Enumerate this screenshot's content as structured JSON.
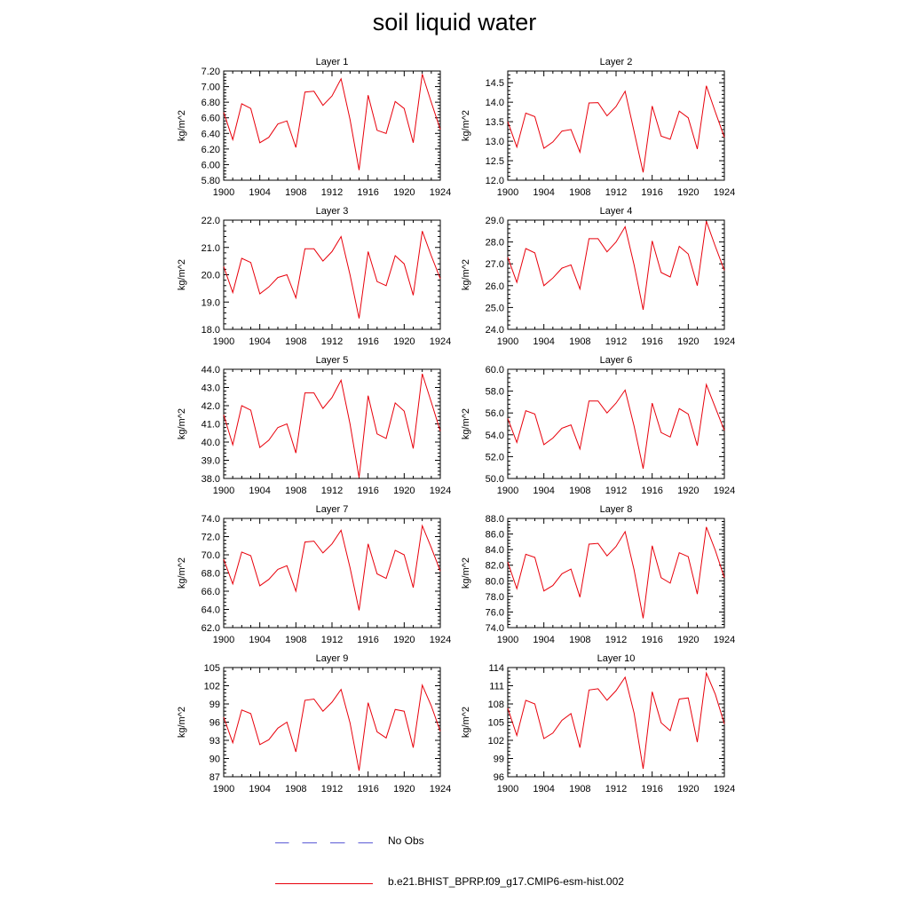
{
  "figure": {
    "title": "soil liquid water"
  },
  "colors": {
    "series": "#e8000b",
    "obs": "#5b5bd6",
    "axis": "#000000"
  },
  "legend": {
    "entries": [
      {
        "label": "No Obs",
        "style": "dashed",
        "color": "#5b5bd6"
      },
      {
        "label": "b.e21.BHIST_BPRP.f09_g17.CMIP6-esm-hist.002",
        "style": "solid",
        "color": "#e8000b"
      }
    ]
  },
  "chart_data": [
    {
      "type": "line",
      "title": "Layer 1",
      "ylabel": "kg/m^2",
      "xlim": [
        1900,
        1924
      ],
      "ylim": [
        5.8,
        7.2
      ],
      "yticks": [
        "5.80",
        "6.00",
        "6.20",
        "6.40",
        "6.60",
        "6.80",
        "7.00",
        "7.20"
      ],
      "xticks": [
        "1900",
        "1904",
        "1908",
        "1912",
        "1916",
        "1920",
        "1924"
      ],
      "x": [
        1900,
        1901,
        1902,
        1903,
        1904,
        1905,
        1906,
        1907,
        1908,
        1909,
        1910,
        1911,
        1912,
        1913,
        1914,
        1915,
        1916,
        1917,
        1918,
        1919,
        1920,
        1921,
        1922,
        1923,
        1924
      ],
      "values": [
        6.67,
        6.32,
        6.78,
        6.72,
        6.28,
        6.35,
        6.52,
        6.56,
        6.22,
        6.93,
        6.94,
        6.76,
        6.88,
        7.1,
        6.58,
        5.93,
        6.89,
        6.44,
        6.4,
        6.81,
        6.72,
        6.28,
        7.16,
        6.8,
        6.45
      ]
    },
    {
      "type": "line",
      "title": "Layer 2",
      "ylabel": "kg/m^2",
      "xlim": [
        1900,
        1924
      ],
      "ylim": [
        12.0,
        14.8
      ],
      "yticks": [
        "12.0",
        "12.5",
        "13.0",
        "13.5",
        "14.0",
        "14.5"
      ],
      "xticks": [
        "1900",
        "1904",
        "1908",
        "1912",
        "1916",
        "1920",
        "1924"
      ],
      "x": [
        1900,
        1901,
        1902,
        1903,
        1904,
        1905,
        1906,
        1907,
        1908,
        1909,
        1910,
        1911,
        1912,
        1913,
        1914,
        1915,
        1916,
        1917,
        1918,
        1919,
        1920,
        1921,
        1922,
        1923,
        1924
      ],
      "values": [
        13.5,
        12.85,
        13.72,
        13.63,
        12.82,
        12.98,
        13.26,
        13.3,
        12.72,
        13.98,
        13.99,
        13.65,
        13.89,
        14.28,
        13.25,
        12.2,
        13.9,
        13.13,
        13.05,
        13.77,
        13.6,
        12.8,
        14.42,
        13.75,
        13.1
      ]
    },
    {
      "type": "line",
      "title": "Layer 3",
      "ylabel": "kg/m^2",
      "xlim": [
        1900,
        1924
      ],
      "ylim": [
        18.0,
        22.0
      ],
      "yticks": [
        "18.0",
        "19.0",
        "20.0",
        "21.0",
        "22.0"
      ],
      "xticks": [
        "1900",
        "1904",
        "1908",
        "1912",
        "1916",
        "1920",
        "1924"
      ],
      "x": [
        1900,
        1901,
        1902,
        1903,
        1904,
        1905,
        1906,
        1907,
        1908,
        1909,
        1910,
        1911,
        1912,
        1913,
        1914,
        1915,
        1916,
        1917,
        1918,
        1919,
        1920,
        1921,
        1922,
        1923,
        1924
      ],
      "values": [
        20.3,
        19.35,
        20.6,
        20.45,
        19.3,
        19.55,
        19.9,
        20.0,
        19.15,
        20.95,
        20.95,
        20.5,
        20.85,
        21.4,
        20.0,
        18.4,
        20.85,
        19.75,
        19.6,
        20.7,
        20.4,
        19.25,
        21.6,
        20.7,
        19.85
      ]
    },
    {
      "type": "line",
      "title": "Layer 4",
      "ylabel": "kg/m^2",
      "xlim": [
        1900,
        1924
      ],
      "ylim": [
        24.0,
        29.0
      ],
      "yticks": [
        "24.0",
        "25.0",
        "26.0",
        "27.0",
        "28.0",
        "29.0"
      ],
      "xticks": [
        "1900",
        "1904",
        "1908",
        "1912",
        "1916",
        "1920",
        "1924"
      ],
      "x": [
        1900,
        1901,
        1902,
        1903,
        1904,
        1905,
        1906,
        1907,
        1908,
        1909,
        1910,
        1911,
        1912,
        1913,
        1914,
        1915,
        1916,
        1917,
        1918,
        1919,
        1920,
        1921,
        1922,
        1923,
        1924
      ],
      "values": [
        27.3,
        26.15,
        27.7,
        27.5,
        26.0,
        26.35,
        26.8,
        26.95,
        25.85,
        28.15,
        28.15,
        27.55,
        28.0,
        28.7,
        26.95,
        24.9,
        28.05,
        26.6,
        26.4,
        27.8,
        27.45,
        26.0,
        28.95,
        27.8,
        26.7
      ]
    },
    {
      "type": "line",
      "title": "Layer 5",
      "ylabel": "kg/m^2",
      "xlim": [
        1900,
        1924
      ],
      "ylim": [
        38.0,
        44.0
      ],
      "yticks": [
        "38.0",
        "39.0",
        "40.0",
        "41.0",
        "42.0",
        "43.0",
        "44.0"
      ],
      "xticks": [
        "1900",
        "1904",
        "1908",
        "1912",
        "1916",
        "1920",
        "1924"
      ],
      "x": [
        1900,
        1901,
        1902,
        1903,
        1904,
        1905,
        1906,
        1907,
        1908,
        1909,
        1910,
        1911,
        1912,
        1913,
        1914,
        1915,
        1916,
        1917,
        1918,
        1919,
        1920,
        1921,
        1922,
        1923,
        1924
      ],
      "values": [
        41.5,
        39.85,
        42.0,
        41.75,
        39.7,
        40.1,
        40.8,
        41.0,
        39.4,
        42.7,
        42.7,
        41.85,
        42.45,
        43.4,
        41.0,
        38.05,
        42.55,
        40.45,
        40.2,
        42.15,
        41.7,
        39.65,
        43.75,
        42.2,
        40.6
      ]
    },
    {
      "type": "line",
      "title": "Layer 6",
      "ylabel": "kg/m^2",
      "xlim": [
        1900,
        1924
      ],
      "ylim": [
        50.0,
        60.0
      ],
      "yticks": [
        "50.0",
        "52.0",
        "54.0",
        "56.0",
        "58.0",
        "60.0"
      ],
      "xticks": [
        "1900",
        "1904",
        "1908",
        "1912",
        "1916",
        "1920",
        "1924"
      ],
      "x": [
        1900,
        1901,
        1902,
        1903,
        1904,
        1905,
        1906,
        1907,
        1908,
        1909,
        1910,
        1911,
        1912,
        1913,
        1914,
        1915,
        1916,
        1917,
        1918,
        1919,
        1920,
        1921,
        1922,
        1923,
        1924
      ],
      "values": [
        55.5,
        53.3,
        56.2,
        55.9,
        53.1,
        53.7,
        54.6,
        54.9,
        52.7,
        57.1,
        57.1,
        56.0,
        56.9,
        58.1,
        54.8,
        50.9,
        56.9,
        54.2,
        53.8,
        56.4,
        55.9,
        53.0,
        58.6,
        56.5,
        54.4
      ]
    },
    {
      "type": "line",
      "title": "Layer 7",
      "ylabel": "kg/m^2",
      "xlim": [
        1900,
        1924
      ],
      "ylim": [
        62.0,
        74.0
      ],
      "yticks": [
        "62.0",
        "64.0",
        "66.0",
        "68.0",
        "70.0",
        "72.0",
        "74.0"
      ],
      "xticks": [
        "1900",
        "1904",
        "1908",
        "1912",
        "1916",
        "1920",
        "1924"
      ],
      "x": [
        1900,
        1901,
        1902,
        1903,
        1904,
        1905,
        1906,
        1907,
        1908,
        1909,
        1910,
        1911,
        1912,
        1913,
        1914,
        1915,
        1916,
        1917,
        1918,
        1919,
        1920,
        1921,
        1922,
        1923,
        1924
      ],
      "values": [
        69.5,
        66.8,
        70.3,
        69.9,
        66.6,
        67.3,
        68.4,
        68.8,
        66.0,
        71.4,
        71.5,
        70.2,
        71.2,
        72.7,
        68.6,
        63.9,
        71.2,
        67.9,
        67.4,
        70.5,
        70.0,
        66.4,
        73.2,
        70.8,
        68.2
      ]
    },
    {
      "type": "line",
      "title": "Layer 8",
      "ylabel": "kg/m^2",
      "xlim": [
        1900,
        1924
      ],
      "ylim": [
        74.0,
        88.0
      ],
      "yticks": [
        "74.0",
        "76.0",
        "78.0",
        "80.0",
        "82.0",
        "84.0",
        "86.0",
        "88.0"
      ],
      "xticks": [
        "1900",
        "1904",
        "1908",
        "1912",
        "1916",
        "1920",
        "1924"
      ],
      "x": [
        1900,
        1901,
        1902,
        1903,
        1904,
        1905,
        1906,
        1907,
        1908,
        1909,
        1910,
        1911,
        1912,
        1913,
        1914,
        1915,
        1916,
        1917,
        1918,
        1919,
        1920,
        1921,
        1922,
        1923,
        1924
      ],
      "values": [
        82.4,
        79.0,
        83.4,
        83.0,
        78.7,
        79.4,
        80.9,
        81.5,
        77.9,
        84.7,
        84.8,
        83.2,
        84.4,
        86.3,
        81.4,
        75.2,
        84.5,
        80.4,
        79.7,
        83.6,
        83.1,
        78.3,
        86.9,
        83.9,
        80.4
      ]
    },
    {
      "type": "line",
      "title": "Layer 9",
      "ylabel": "kg/m^2",
      "xlim": [
        1900,
        1924
      ],
      "ylim": [
        87,
        105
      ],
      "yticks": [
        "87",
        "90",
        "93",
        "96",
        "99",
        "102",
        "105"
      ],
      "xticks": [
        "1900",
        "1904",
        "1908",
        "1912",
        "1916",
        "1920",
        "1924"
      ],
      "x": [
        1900,
        1901,
        1902,
        1903,
        1904,
        1905,
        1906,
        1907,
        1908,
        1909,
        1910,
        1911,
        1912,
        1913,
        1914,
        1915,
        1916,
        1917,
        1918,
        1919,
        1920,
        1921,
        1922,
        1923,
        1924
      ],
      "values": [
        96.8,
        92.6,
        98.0,
        97.4,
        92.3,
        93.1,
        95.0,
        96.0,
        91.1,
        99.6,
        99.8,
        97.8,
        99.3,
        101.4,
        95.9,
        88.0,
        99.2,
        94.4,
        93.4,
        98.1,
        97.8,
        91.8,
        102.1,
        98.7,
        94.5
      ]
    },
    {
      "type": "line",
      "title": "Layer 10",
      "ylabel": "kg/m^2",
      "xlim": [
        1900,
        1924
      ],
      "ylim": [
        96,
        114
      ],
      "yticks": [
        "96",
        "99",
        "102",
        "105",
        "108",
        "111",
        "114"
      ],
      "xticks": [
        "1900",
        "1904",
        "1908",
        "1912",
        "1916",
        "1920",
        "1924"
      ],
      "x": [
        1900,
        1901,
        1902,
        1903,
        1904,
        1905,
        1906,
        1907,
        1908,
        1909,
        1910,
        1911,
        1912,
        1913,
        1914,
        1915,
        1916,
        1917,
        1918,
        1919,
        1920,
        1921,
        1922,
        1923,
        1924
      ],
      "values": [
        107.3,
        102.8,
        108.6,
        108.0,
        102.3,
        103.2,
        105.3,
        106.4,
        100.8,
        110.3,
        110.5,
        108.6,
        110.2,
        112.4,
        106.5,
        97.3,
        110.0,
        104.9,
        103.6,
        108.8,
        109.0,
        101.7,
        113.1,
        109.6,
        104.7
      ]
    }
  ]
}
